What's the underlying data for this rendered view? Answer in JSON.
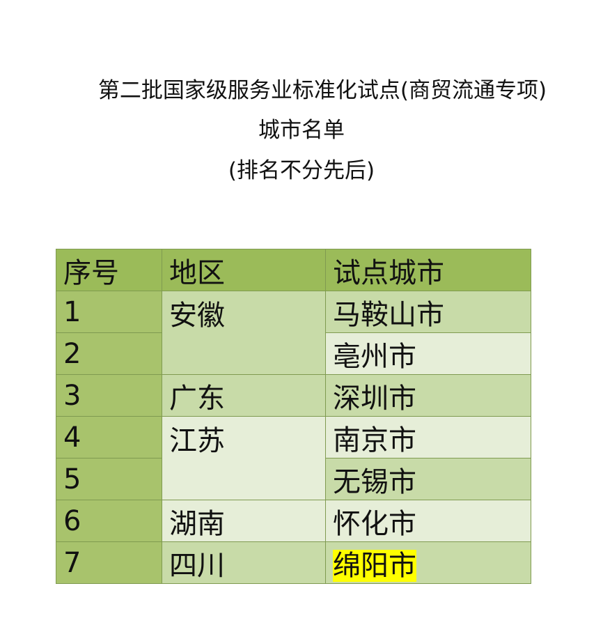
{
  "title": {
    "line1": "第二批国家级服务业标准化试点(商贸流通专项)",
    "line2": "城市名单",
    "line3": "(排名不分先后)"
  },
  "table": {
    "headers": [
      "序号",
      "地区",
      "试点城市"
    ],
    "rows": [
      {
        "no": "1",
        "region": "安徽",
        "city": "马鞍山市"
      },
      {
        "no": "2",
        "region": "",
        "city": "亳州市"
      },
      {
        "no": "3",
        "region": "广东",
        "city": "深圳市"
      },
      {
        "no": "4",
        "region": "江苏",
        "city": "南京市"
      },
      {
        "no": "5",
        "region": "",
        "city": "无锡市"
      },
      {
        "no": "6",
        "region": "湖南",
        "city": "怀化市"
      },
      {
        "no": "7",
        "region": "四川",
        "city": "绵阳市"
      }
    ],
    "highlighted_city": "绵阳市",
    "colors": {
      "header": "#9bbb59",
      "index_column": "#a8c36c",
      "medium": "#c8dba8",
      "light": "#e6eed8",
      "highlight": "#ffff00"
    }
  }
}
